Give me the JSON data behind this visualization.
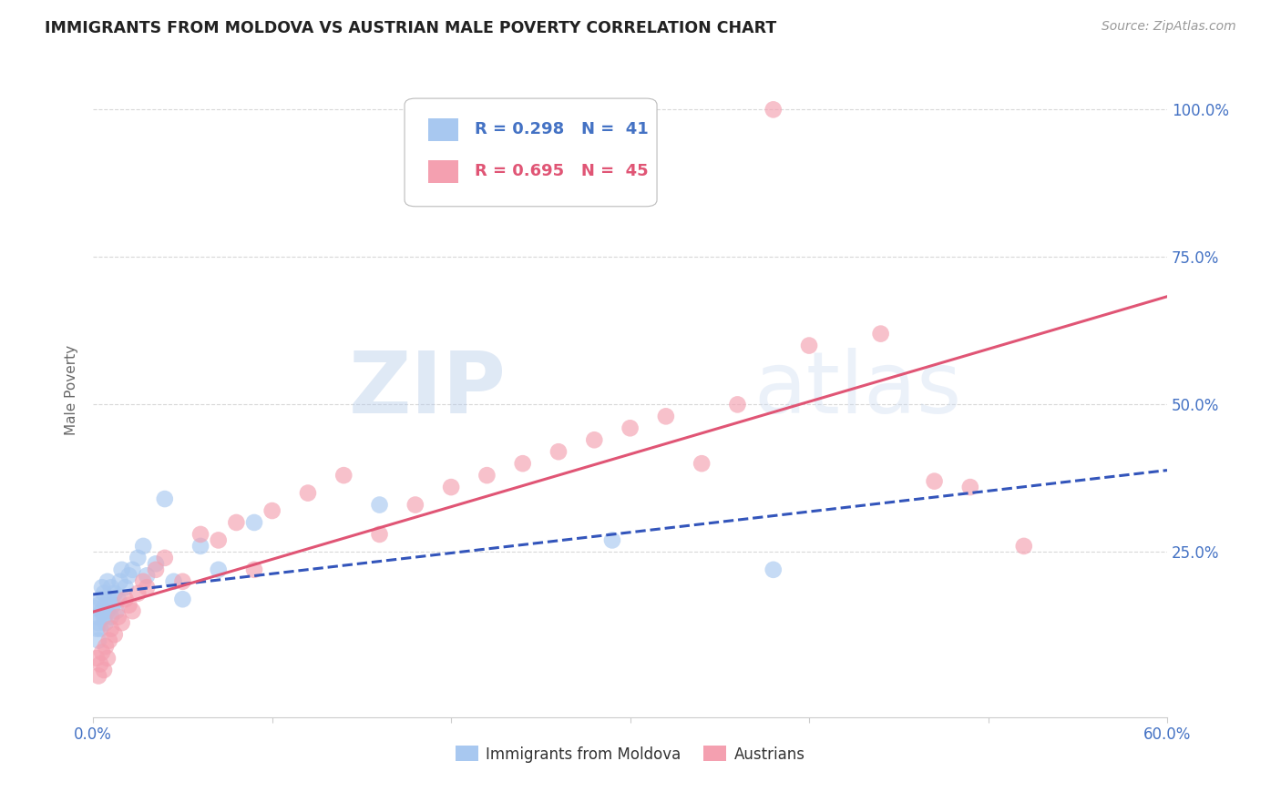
{
  "title": "IMMIGRANTS FROM MOLDOVA VS AUSTRIAN MALE POVERTY CORRELATION CHART",
  "source": "Source: ZipAtlas.com",
  "ylabel": "Male Poverty",
  "x_min": 0.0,
  "x_max": 0.6,
  "y_min": -0.03,
  "y_max": 1.08,
  "moldova_R": 0.298,
  "moldova_N": 41,
  "austrians_R": 0.695,
  "austrians_N": 45,
  "moldova_color": "#a8c8f0",
  "moldova_line_color": "#3355bb",
  "austrians_color": "#f4a0b0",
  "austrians_line_color": "#e05575",
  "watermark_color": "#c5d8ee",
  "background_color": "#ffffff",
  "grid_color": "#d8d8d8",
  "moldova_x": [
    0.001,
    0.002,
    0.002,
    0.003,
    0.003,
    0.003,
    0.004,
    0.004,
    0.005,
    0.005,
    0.006,
    0.006,
    0.007,
    0.007,
    0.008,
    0.008,
    0.009,
    0.01,
    0.01,
    0.011,
    0.012,
    0.013,
    0.014,
    0.015,
    0.016,
    0.018,
    0.02,
    0.022,
    0.025,
    0.028,
    0.03,
    0.035,
    0.04,
    0.045,
    0.05,
    0.06,
    0.07,
    0.09,
    0.16,
    0.29,
    0.38
  ],
  "moldova_y": [
    0.155,
    0.12,
    0.14,
    0.1,
    0.13,
    0.16,
    0.12,
    0.17,
    0.15,
    0.19,
    0.14,
    0.18,
    0.13,
    0.16,
    0.15,
    0.2,
    0.17,
    0.14,
    0.19,
    0.16,
    0.18,
    0.15,
    0.17,
    0.2,
    0.22,
    0.19,
    0.21,
    0.22,
    0.24,
    0.26,
    0.21,
    0.23,
    0.34,
    0.2,
    0.17,
    0.26,
    0.22,
    0.3,
    0.33,
    0.27,
    0.22
  ],
  "austrians_x": [
    0.002,
    0.003,
    0.004,
    0.005,
    0.006,
    0.007,
    0.008,
    0.009,
    0.01,
    0.012,
    0.014,
    0.016,
    0.018,
    0.02,
    0.022,
    0.025,
    0.028,
    0.03,
    0.035,
    0.04,
    0.05,
    0.06,
    0.07,
    0.08,
    0.09,
    0.1,
    0.12,
    0.14,
    0.16,
    0.18,
    0.2,
    0.22,
    0.24,
    0.26,
    0.28,
    0.3,
    0.32,
    0.34,
    0.36,
    0.38,
    0.4,
    0.44,
    0.47,
    0.49,
    0.52
  ],
  "austrians_y": [
    0.07,
    0.04,
    0.06,
    0.08,
    0.05,
    0.09,
    0.07,
    0.1,
    0.12,
    0.11,
    0.14,
    0.13,
    0.17,
    0.16,
    0.15,
    0.18,
    0.2,
    0.19,
    0.22,
    0.24,
    0.2,
    0.28,
    0.27,
    0.3,
    0.22,
    0.32,
    0.35,
    0.38,
    0.28,
    0.33,
    0.36,
    0.38,
    0.4,
    0.42,
    0.44,
    0.46,
    0.48,
    0.4,
    0.5,
    1.0,
    0.6,
    0.62,
    0.37,
    0.36,
    0.26
  ],
  "y_ticks": [
    0.0,
    0.25,
    0.5,
    0.75,
    1.0
  ],
  "y_tick_labels": [
    "",
    "25.0%",
    "50.0%",
    "75.0%",
    "100.0%"
  ],
  "legend_blue_text": "R = 0.298   N =  41",
  "legend_pink_text": "R = 0.695   N =  45",
  "legend_blue_color": "#4472c4",
  "legend_pink_color": "#e05575",
  "bottom_label_moldova": "Immigrants from Moldova",
  "bottom_label_austrians": "Austrians"
}
